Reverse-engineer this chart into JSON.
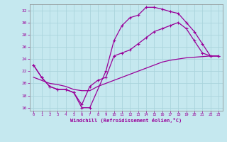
{
  "xlabel": "Windchill (Refroidissement éolien,°C)",
  "bg_color": "#c5e8ef",
  "grid_color": "#aad4dc",
  "line_color": "#990099",
  "xlim": [
    -0.5,
    23.5
  ],
  "ylim": [
    15.5,
    33.0
  ],
  "xticks": [
    0,
    1,
    2,
    3,
    4,
    5,
    6,
    7,
    8,
    9,
    10,
    11,
    12,
    13,
    14,
    15,
    16,
    17,
    18,
    19,
    20,
    21,
    22,
    23
  ],
  "yticks": [
    16,
    18,
    20,
    22,
    24,
    26,
    28,
    30,
    32
  ],
  "line_upper_x": [
    0,
    1,
    2,
    3,
    4,
    5,
    6,
    7,
    9,
    10,
    11,
    12,
    13,
    14,
    15,
    16,
    17,
    18,
    19,
    20,
    21,
    22,
    23
  ],
  "line_upper_y": [
    23,
    21,
    19.5,
    19,
    19,
    18.5,
    16,
    16,
    22,
    27,
    29.5,
    30.8,
    31.2,
    32.5,
    32.5,
    32.2,
    31.8,
    31.5,
    30,
    28.5,
    26.5,
    24.5,
    24.5
  ],
  "line_mid_x": [
    0,
    1,
    2,
    3,
    4,
    5,
    6,
    7,
    8,
    9,
    10,
    11,
    12,
    13,
    14,
    15,
    16,
    17,
    18,
    19,
    20,
    21,
    22,
    23
  ],
  "line_mid_y": [
    23,
    21,
    19.5,
    19,
    19,
    18.5,
    16.5,
    19.5,
    20.5,
    21,
    24.5,
    25,
    25.5,
    26.5,
    27.5,
    28.5,
    29,
    29.5,
    30,
    29,
    27,
    25,
    24.5,
    24.5
  ],
  "line_low_x": [
    0,
    1,
    2,
    3,
    4,
    5,
    6,
    7,
    8,
    9,
    10,
    11,
    12,
    13,
    14,
    15,
    16,
    17,
    18,
    19,
    20,
    21,
    22,
    23
  ],
  "line_low_y": [
    21,
    20.5,
    20,
    19.8,
    19.5,
    19,
    18.8,
    18.8,
    19.5,
    20,
    20.5,
    21,
    21.5,
    22,
    22.5,
    23,
    23.5,
    23.8,
    24,
    24.2,
    24.3,
    24.4,
    24.5,
    24.5
  ]
}
